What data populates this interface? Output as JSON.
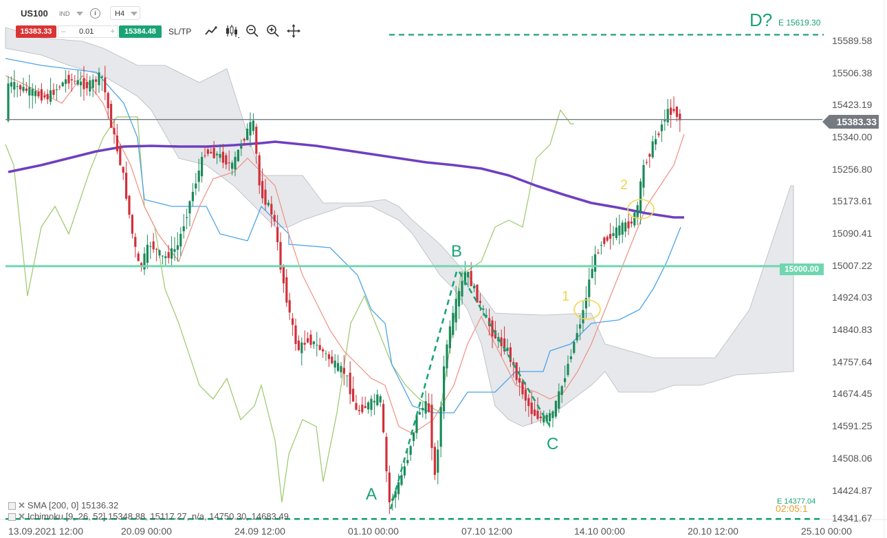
{
  "toolbar": {
    "symbol": "US100",
    "instrument_type": "IND",
    "info_label": "i",
    "timeframe": "H4",
    "sell_price": "15383.33",
    "volume_minus": "–",
    "volume": "0.01",
    "volume_plus": "+",
    "buy_price": "15384.48",
    "sltp_label": "SL/TP",
    "icons": [
      "line-chart-icon",
      "candlestick-icon",
      "zoom-out-icon",
      "zoom-in-icon",
      "move-icon"
    ]
  },
  "price_axis": {
    "labels": [
      "15589.58",
      "15506.38",
      "15423.19",
      "15340.00",
      "15256.80",
      "15173.61",
      "15090.41",
      "15007.22",
      "14924.03",
      "14840.83",
      "14757.64",
      "14674.45",
      "14591.25",
      "14508.06",
      "14424.87",
      "14341.67"
    ],
    "current_price": "15383.33",
    "level_15000": "15000.00"
  },
  "time_axis": {
    "labels": [
      "13.09.2021 12:00",
      "20.09 00:00",
      "24.09 12:00",
      "01.10 00:00",
      "07.10 12:00",
      "14.10 00:00",
      "20.10 12:00",
      "25.10 00:00"
    ]
  },
  "annotations": {
    "wave_A": "A",
    "wave_B": "B",
    "wave_C": "C",
    "wave_D": "D?",
    "target_label": "E 15619.30",
    "bottom_label": "E 14377.04",
    "bottom_label2": "02:05:1",
    "marker_1": "1",
    "marker_2": "2"
  },
  "indicators": {
    "sma": "SMA [200, 0] 15136.32",
    "ichimoku": "Ichimoku [9, 26, 52] 15348.88, 15117.27, n/a, 14750.30, 14683.49"
  },
  "colors": {
    "bull": "#1b8a5a",
    "bear": "#d1303a",
    "sma": "#6f3fc0",
    "tenkan": "#f08f80",
    "kijun": "#4aa3e8",
    "chikou": "#9ac86a",
    "cloud": "#c8cdd2",
    "level": "#6fd6b0",
    "wave_line": "#1aa374",
    "marker": "#f2d64b"
  }
}
